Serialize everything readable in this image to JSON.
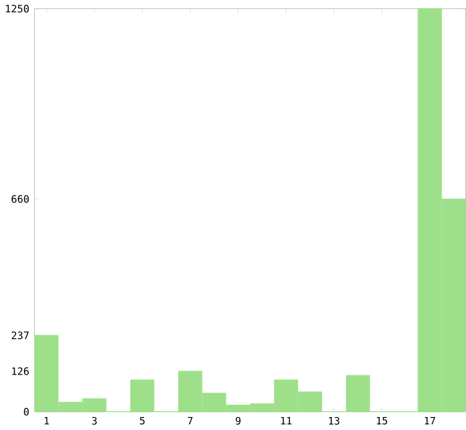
{
  "chart_data": {
    "type": "bar",
    "categories": [
      "1",
      null,
      "3",
      null,
      "5",
      null,
      "7",
      null,
      "9",
      null,
      "11",
      null,
      "13",
      null,
      "15",
      null,
      "17",
      null
    ],
    "values": [
      237,
      30,
      41,
      0,
      99,
      0,
      126,
      58,
      21,
      25,
      99,
      62,
      0,
      113,
      0,
      0,
      1250,
      660
    ],
    "color": "#9ee08a",
    "ylim": [
      0,
      1250
    ],
    "yticks": [
      0,
      126,
      237,
      660,
      1250
    ],
    "grid": false
  }
}
